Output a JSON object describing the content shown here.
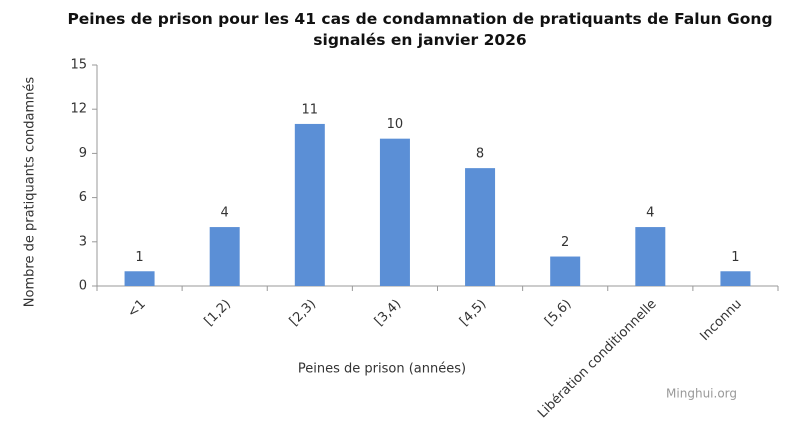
{
  "chart_data": {
    "type": "bar",
    "title": "Peines de prison pour les 41 cas de condamnation de pratiquants de Falun Gong signalés en janvier 2026",
    "x_label": "Peines de prison (années)",
    "y_label": "Nombre de pratiquants condamnés",
    "watermark": "Minghui.org",
    "categories": [
      "<1",
      "[1,2)",
      "[2,3)",
      "[3,4)",
      "[4,5)",
      "[5,6)",
      "Libération conditionnelle",
      "Inconnu"
    ],
    "values": [
      1,
      4,
      11,
      10,
      8,
      2,
      4,
      1
    ],
    "color": "#5b8fd6",
    "ylim": [
      0,
      15
    ],
    "yticks": [
      0,
      3,
      6,
      9,
      12,
      15
    ],
    "grid": false
  }
}
